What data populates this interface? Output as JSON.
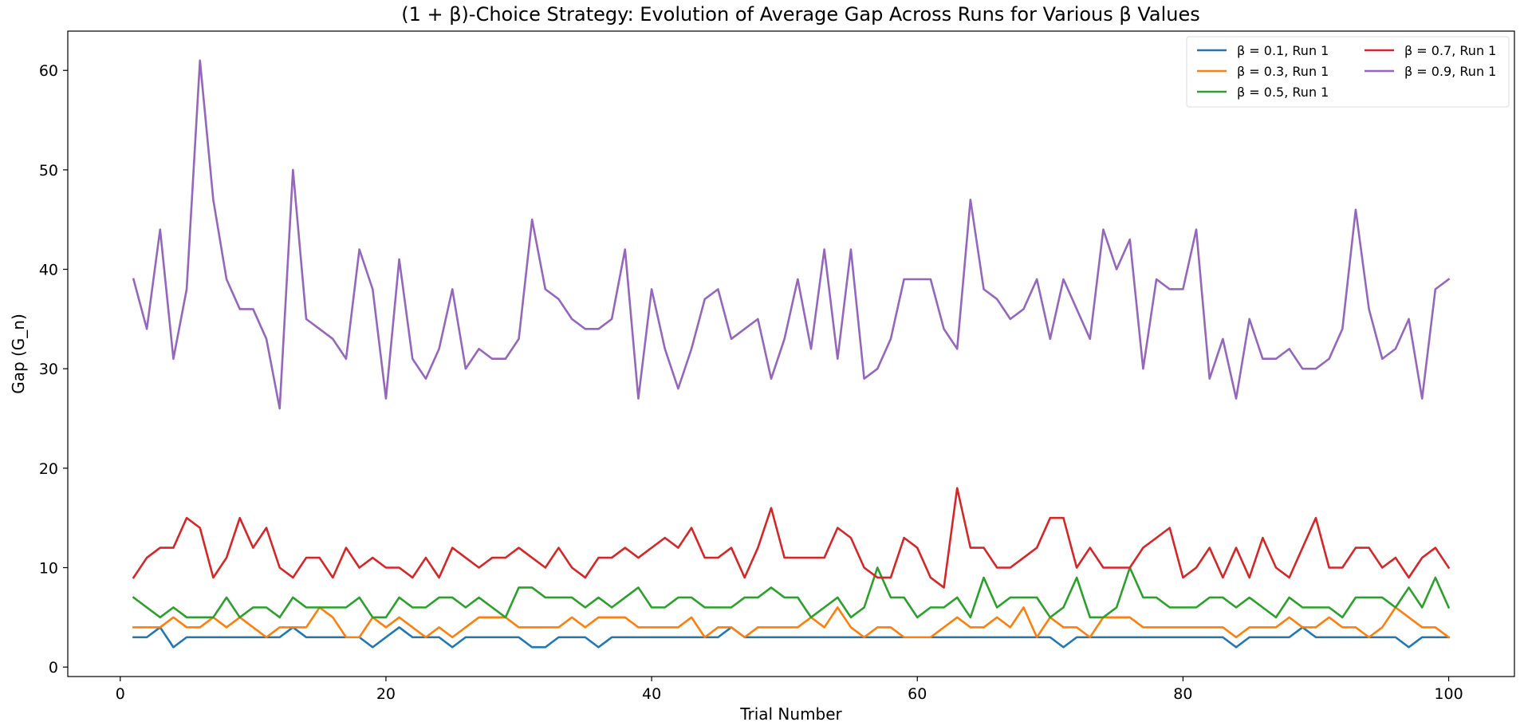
{
  "chart_data": {
    "type": "line",
    "title": "(1 + β)-Choice Strategy: Evolution of Average Gap Across Runs for Various β Values",
    "xlabel": "Trial Number",
    "ylabel": "Gap (G_n)",
    "xlim": [
      -3.95,
      104.95
    ],
    "ylim": [
      -0.95,
      63.95
    ],
    "xticks": [
      0,
      20,
      40,
      60,
      80,
      100
    ],
    "yticks": [
      0,
      10,
      20,
      30,
      40,
      50,
      60
    ],
    "grid": false,
    "legend_position": "top-right",
    "series": [
      {
        "name": "β = 0.1, Run 1",
        "color": "#1f77b4",
        "values": [
          3,
          3,
          4,
          2,
          3,
          3,
          3,
          3,
          3,
          3,
          3,
          3,
          4,
          3,
          3,
          3,
          3,
          3,
          2,
          3,
          4,
          3,
          3,
          3,
          2,
          3,
          3,
          3,
          3,
          3,
          2,
          2,
          3,
          3,
          3,
          2,
          3,
          3,
          3,
          3,
          3,
          3,
          3,
          3,
          3,
          4,
          3,
          3,
          3,
          3,
          3,
          3,
          3,
          3,
          3,
          3,
          3,
          3,
          3,
          3,
          3,
          3,
          3,
          3,
          3,
          3,
          3,
          3,
          3,
          3,
          2,
          3,
          3,
          3,
          3,
          3,
          3,
          3,
          3,
          3,
          3,
          3,
          3,
          2,
          3,
          3,
          3,
          3,
          4,
          3,
          3,
          3,
          3,
          3,
          3,
          3,
          2,
          3,
          3,
          3
        ]
      },
      {
        "name": "β = 0.3, Run 1",
        "color": "#ff7f0e",
        "values": [
          4,
          4,
          4,
          5,
          4,
          4,
          5,
          4,
          5,
          4,
          3,
          4,
          4,
          4,
          6,
          5,
          3,
          3,
          5,
          4,
          5,
          4,
          3,
          4,
          3,
          4,
          5,
          5,
          5,
          4,
          4,
          4,
          4,
          5,
          4,
          5,
          5,
          5,
          4,
          4,
          4,
          4,
          5,
          3,
          4,
          4,
          3,
          4,
          4,
          4,
          4,
          5,
          4,
          6,
          4,
          3,
          4,
          4,
          3,
          3,
          3,
          4,
          5,
          4,
          4,
          5,
          4,
          6,
          3,
          5,
          4,
          4,
          3,
          5,
          5,
          5,
          4,
          4,
          4,
          4,
          4,
          4,
          4,
          3,
          4,
          4,
          4,
          5,
          4,
          4,
          5,
          4,
          4,
          3,
          4,
          6,
          5,
          4,
          4,
          3
        ]
      },
      {
        "name": "β = 0.5, Run 1",
        "color": "#2ca02c",
        "values": [
          7,
          6,
          5,
          6,
          5,
          5,
          5,
          7,
          5,
          6,
          6,
          5,
          7,
          6,
          6,
          6,
          6,
          7,
          5,
          5,
          7,
          6,
          6,
          7,
          7,
          6,
          7,
          6,
          5,
          8,
          8,
          7,
          7,
          7,
          6,
          7,
          6,
          7,
          8,
          6,
          6,
          7,
          7,
          6,
          6,
          6,
          7,
          7,
          8,
          7,
          7,
          5,
          6,
          7,
          5,
          6,
          10,
          7,
          7,
          5,
          6,
          6,
          7,
          5,
          9,
          6,
          7,
          7,
          7,
          5,
          6,
          9,
          5,
          5,
          6,
          10,
          7,
          7,
          6,
          6,
          6,
          7,
          7,
          6,
          7,
          6,
          5,
          7,
          6,
          6,
          6,
          5,
          7,
          7,
          7,
          6,
          8,
          6,
          9,
          6
        ]
      },
      {
        "name": "β = 0.7, Run 1",
        "color": "#d62728",
        "values": [
          9,
          11,
          12,
          12,
          15,
          14,
          9,
          11,
          15,
          12,
          14,
          10,
          9,
          11,
          11,
          9,
          12,
          10,
          11,
          10,
          10,
          9,
          11,
          9,
          12,
          11,
          10,
          11,
          11,
          12,
          11,
          10,
          12,
          10,
          9,
          11,
          11,
          12,
          11,
          12,
          13,
          12,
          14,
          11,
          11,
          12,
          9,
          12,
          16,
          11,
          11,
          11,
          11,
          14,
          13,
          10,
          9,
          9,
          13,
          12,
          9,
          8,
          18,
          12,
          12,
          10,
          10,
          11,
          12,
          15,
          15,
          10,
          12,
          10,
          10,
          10,
          12,
          13,
          14,
          9,
          10,
          12,
          9,
          12,
          9,
          13,
          10,
          9,
          12,
          15,
          10,
          10,
          12,
          12,
          10,
          11,
          9,
          11,
          12,
          10
        ]
      },
      {
        "name": "β = 0.9, Run 1",
        "color": "#9467bd",
        "values": [
          39,
          34,
          44,
          31,
          38,
          61,
          47,
          39,
          36,
          36,
          33,
          26,
          50,
          35,
          34,
          33,
          31,
          42,
          38,
          27,
          41,
          31,
          29,
          32,
          38,
          30,
          32,
          31,
          31,
          33,
          45,
          38,
          37,
          35,
          34,
          34,
          35,
          42,
          27,
          38,
          32,
          28,
          32,
          37,
          38,
          33,
          34,
          35,
          29,
          33,
          39,
          32,
          42,
          31,
          42,
          29,
          30,
          33,
          39,
          39,
          39,
          34,
          32,
          47,
          38,
          37,
          35,
          36,
          39,
          33,
          39,
          36,
          33,
          44,
          40,
          43,
          30,
          39,
          38,
          38,
          44,
          29,
          33,
          27,
          35,
          31,
          31,
          32,
          30,
          30,
          31,
          34,
          46,
          36,
          31,
          32,
          35,
          27,
          38,
          39
        ]
      }
    ]
  }
}
